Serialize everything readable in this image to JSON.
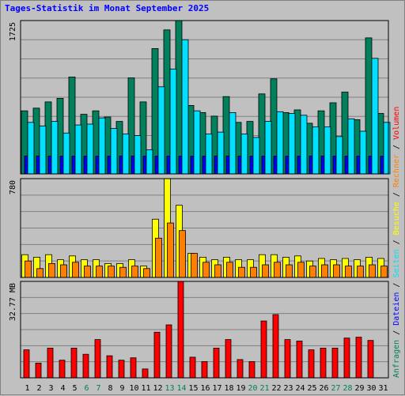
{
  "title": "Tages-Statistik im Monat September 2025",
  "colors": {
    "anfragen": "#00805c",
    "dateien": "#0000ff",
    "seiten": "#00e0ff",
    "besuche": "#ffff00",
    "rechner": "#ff8000",
    "volumen": "#ff0000",
    "weekend_label": "#00805c",
    "weekday_label": "#000000"
  },
  "right_legend": {
    "top": [
      {
        "text": "Anfragen",
        "color": "#00805c"
      },
      {
        "text": " / ",
        "color": "#000000"
      },
      {
        "text": "Dateien",
        "color": "#0000ff"
      },
      {
        "text": " / ",
        "color": "#000000"
      },
      {
        "text": "Seiten",
        "color": "#00e0ff"
      },
      {
        "text": " / ",
        "color": "#000000"
      },
      {
        "text": "Besuche",
        "color": "#ffff00"
      },
      {
        "text": " / ",
        "color": "#000000"
      },
      {
        "text": "Rechner",
        "color": "#ff8000"
      },
      {
        "text": " / ",
        "color": "#000000"
      },
      {
        "text": "Volumen",
        "color": "#ff0000"
      }
    ]
  },
  "chart_data": {
    "type": "bar",
    "categories": [
      "1",
      "2",
      "3",
      "4",
      "5",
      "6",
      "7",
      "8",
      "9",
      "10",
      "11",
      "12",
      "13",
      "14",
      "15",
      "16",
      "17",
      "18",
      "19",
      "20",
      "21",
      "22",
      "23",
      "24",
      "25",
      "26",
      "27",
      "28",
      "29",
      "30",
      "31"
    ],
    "weekend_days": [
      6,
      7,
      13,
      14,
      20,
      21,
      27,
      28
    ],
    "panels": [
      {
        "name": "hits",
        "ymax": 1725,
        "ymax_label": "1725",
        "series": [
          {
            "name": "Anfragen",
            "values": [
              710,
              740,
              810,
              850,
              1090,
              670,
              710,
              640,
              590,
              1080,
              810,
              1410,
              1620,
              1725,
              770,
              690,
              650,
              870,
              580,
              590,
              900,
              1070,
              690,
              720,
              570,
              710,
              800,
              920,
              610,
              1530,
              680
            ]
          },
          {
            "name": "Dateien",
            "values": [
              200,
              200,
              200,
              200,
              200,
              200,
              200,
              200,
              200,
              200,
              200,
              200,
              200,
              200,
              200,
              200,
              200,
              200,
              200,
              200,
              200,
              200,
              200,
              200,
              200,
              200,
              200,
              200,
              200,
              200,
              200
            ]
          },
          {
            "name": "Seiten",
            "values": [
              580,
              540,
              590,
              460,
              550,
              560,
              630,
              510,
              450,
              430,
              270,
              980,
              1180,
              1510,
              710,
              450,
              470,
              690,
              450,
              410,
              590,
              700,
              680,
              660,
              530,
              530,
              420,
              620,
              480,
              1300,
              580
            ]
          }
        ]
      },
      {
        "name": "visits",
        "ymax": 780,
        "ymax_label": "780",
        "series": [
          {
            "name": "Besuche",
            "values": [
              180,
              160,
              180,
              140,
              170,
              140,
              140,
              110,
              110,
              140,
              90,
              460,
              780,
              570,
              190,
              160,
              140,
              160,
              140,
              140,
              180,
              180,
              160,
              170,
              130,
              150,
              140,
              150,
              140,
              160,
              150
            ]
          },
          {
            "name": "Rechner",
            "values": [
              130,
              70,
              110,
              100,
              120,
              90,
              90,
              90,
              80,
              90,
              70,
              310,
              430,
              370,
              190,
              120,
              100,
              120,
              80,
              80,
              100,
              120,
              100,
              120,
              90,
              100,
              100,
              90,
              90,
              100,
              90
            ]
          }
        ]
      },
      {
        "name": "volume",
        "ymax": 32.77,
        "ymax_label": "32.77 MB",
        "series": [
          {
            "name": "Volumen",
            "values": [
              9.5,
              5.0,
              10.1,
              6.0,
              10.1,
              8.0,
              13.0,
              7.5,
              6.0,
              6.8,
              3.0,
              15.5,
              18.0,
              32.77,
              7.0,
              5.5,
              10.1,
              13.0,
              6.2,
              5.5,
              19.3,
              21.5,
              13.0,
              12.5,
              9.5,
              10.1,
              10.1,
              13.5,
              13.8,
              12.7,
              0
            ]
          }
        ]
      }
    ]
  }
}
